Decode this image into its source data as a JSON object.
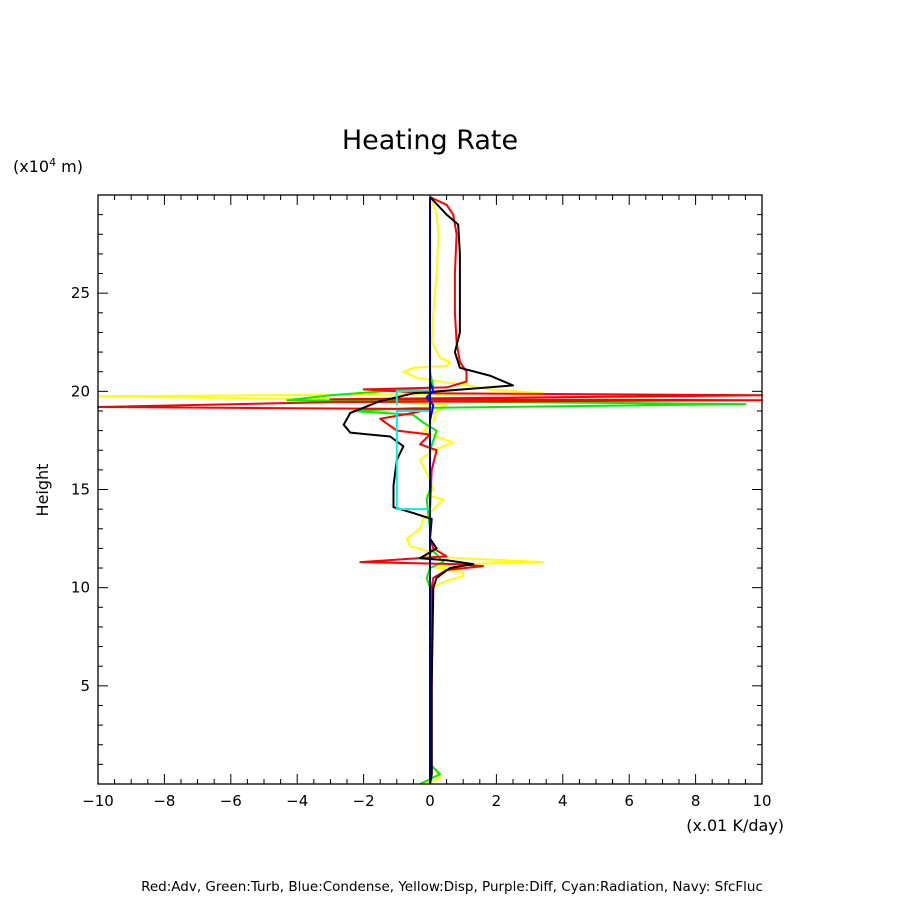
{
  "chart_data": {
    "type": "line",
    "title": "Heating Rate",
    "xlabel": "(x.01 K/day)",
    "ylabel": "Height",
    "yunit_prefix": "(x10",
    "yunit_exp": "4",
    "yunit_suffix": " m)",
    "xlim": [
      -10,
      10
    ],
    "ylim": [
      0,
      30
    ],
    "xticks": [
      -10,
      -8,
      -6,
      -4,
      -2,
      0,
      2,
      4,
      6,
      8,
      10
    ],
    "yticks": [
      5,
      10,
      15,
      20,
      25
    ],
    "footer": "Red:Adv, Green:Turb, Blue:Condense, Yellow:Disp, Purple:Diff, Cyan:Radiation, Navy: SfcFluc",
    "colors": {
      "red": "#ff0000",
      "green": "#00ee00",
      "blue": "#0000ff",
      "yellow": "#ffff00",
      "cyan": "#00eeee",
      "navy": "#000080",
      "black": "#000000"
    },
    "series": [
      {
        "color": "yellow",
        "points": [
          [
            0,
            29.9
          ],
          [
            0.1,
            29.5
          ],
          [
            0.2,
            29
          ],
          [
            0.25,
            28
          ],
          [
            0.2,
            26
          ],
          [
            0.1,
            24
          ],
          [
            0.05,
            22.5
          ],
          [
            0.3,
            21.7
          ],
          [
            0.6,
            21.5
          ],
          [
            0.5,
            21.3
          ],
          [
            -0.5,
            21.2
          ],
          [
            -0.8,
            21
          ],
          [
            -0.4,
            20.7
          ],
          [
            0.3,
            20.5
          ],
          [
            0.8,
            20.4
          ],
          [
            1.8,
            20.1
          ],
          [
            3.4,
            19.9
          ],
          [
            -5,
            19.8
          ],
          [
            -10,
            19.75
          ],
          [
            -3,
            19.6
          ],
          [
            -0.5,
            19.4
          ],
          [
            0.5,
            19.3
          ],
          [
            0.2,
            19
          ],
          [
            0.1,
            18.5
          ],
          [
            -0.2,
            18
          ],
          [
            0.2,
            17.7
          ],
          [
            0.7,
            17.4
          ],
          [
            0.1,
            17
          ],
          [
            -0.3,
            16.5
          ],
          [
            0,
            15.5
          ],
          [
            0.1,
            15
          ],
          [
            -0.1,
            14.7
          ],
          [
            0.4,
            14.5
          ],
          [
            0.1,
            14
          ],
          [
            -0.2,
            13.5
          ],
          [
            -0.3,
            13
          ],
          [
            -0.7,
            12.5
          ],
          [
            -0.6,
            12.1
          ],
          [
            0.1,
            11.8
          ],
          [
            -0.2,
            11.6
          ],
          [
            3.4,
            11.3
          ],
          [
            0.8,
            11.2
          ],
          [
            0.2,
            11
          ],
          [
            1,
            10.8
          ],
          [
            1,
            10.6
          ],
          [
            0.4,
            10.3
          ],
          [
            0.1,
            10
          ],
          [
            0.05,
            9
          ],
          [
            0.05,
            5
          ],
          [
            0.05,
            1
          ],
          [
            0.3,
            0.3
          ],
          [
            -0.2,
            0
          ]
        ]
      },
      {
        "color": "green",
        "points": [
          [
            0,
            29.9
          ],
          [
            0,
            21
          ],
          [
            0.1,
            20.2
          ],
          [
            -3,
            19.8
          ],
          [
            -4.3,
            19.55
          ],
          [
            9.5,
            19.35
          ],
          [
            -0.5,
            19.15
          ],
          [
            -2.3,
            19
          ],
          [
            -0.5,
            18.8
          ],
          [
            -0.2,
            18.4
          ],
          [
            0.2,
            18
          ],
          [
            0.1,
            17.5
          ],
          [
            0,
            17
          ],
          [
            0,
            15
          ],
          [
            -0.1,
            14.5
          ],
          [
            0,
            13
          ],
          [
            0,
            12
          ],
          [
            0.2,
            11.7
          ],
          [
            0.4,
            11.3
          ],
          [
            0,
            11
          ],
          [
            -0.1,
            10.5
          ],
          [
            0,
            10
          ],
          [
            0,
            1
          ],
          [
            0.3,
            0.5
          ],
          [
            -0.3,
            0
          ]
        ]
      },
      {
        "color": "red",
        "points": [
          [
            0,
            29.9
          ],
          [
            0.5,
            29.5
          ],
          [
            0.7,
            29
          ],
          [
            0.8,
            28
          ],
          [
            0.75,
            26
          ],
          [
            0.75,
            24
          ],
          [
            0.8,
            22.5
          ],
          [
            0.9,
            21.5
          ],
          [
            1.1,
            21
          ],
          [
            1.1,
            20.5
          ],
          [
            0.5,
            20.2
          ],
          [
            -2,
            20.1
          ],
          [
            0,
            19.9
          ],
          [
            10,
            19.8
          ],
          [
            -3,
            19.6
          ],
          [
            10,
            19.55
          ],
          [
            -3,
            19.45
          ],
          [
            -10,
            19.2
          ],
          [
            0,
            19.1
          ],
          [
            -0.5,
            18.9
          ],
          [
            -1.5,
            18.6
          ],
          [
            -1,
            18
          ],
          [
            0,
            17.8
          ],
          [
            -0.3,
            17.3
          ],
          [
            0.2,
            17
          ],
          [
            0.05,
            16
          ],
          [
            0,
            14
          ],
          [
            0,
            12.5
          ],
          [
            0.1,
            12
          ],
          [
            0.5,
            11.6
          ],
          [
            -2.1,
            11.3
          ],
          [
            0.8,
            11.2
          ],
          [
            1.6,
            11.1
          ],
          [
            0.5,
            10.9
          ],
          [
            0.1,
            10.5
          ],
          [
            0.05,
            10
          ],
          [
            0.05,
            5
          ],
          [
            0.05,
            0.5
          ],
          [
            0,
            0
          ]
        ]
      },
      {
        "color": "black",
        "points": [
          [
            0,
            29.9
          ],
          [
            0.5,
            29
          ],
          [
            0.85,
            28.5
          ],
          [
            0.9,
            27
          ],
          [
            0.9,
            23
          ],
          [
            0.75,
            22
          ],
          [
            0.9,
            21.2
          ],
          [
            1.8,
            20.8
          ],
          [
            2.5,
            20.3
          ],
          [
            1,
            20.1
          ],
          [
            -0.5,
            19.9
          ],
          [
            -1.5,
            19.5
          ],
          [
            -2.4,
            18.9
          ],
          [
            -2.6,
            18.3
          ],
          [
            -2.4,
            17.9
          ],
          [
            -1.2,
            17.7
          ],
          [
            -0.8,
            17.2
          ],
          [
            -1,
            16.5
          ],
          [
            -1.1,
            15.2
          ],
          [
            -1.1,
            14.1
          ],
          [
            -0.5,
            13.8
          ],
          [
            0.05,
            13.5
          ],
          [
            0,
            12.5
          ],
          [
            0.2,
            12
          ],
          [
            -0.3,
            11.5
          ],
          [
            0.5,
            11.4
          ],
          [
            1.3,
            11.2
          ],
          [
            0.6,
            11
          ],
          [
            0.2,
            10.5
          ],
          [
            0.1,
            10
          ],
          [
            0.05,
            5
          ],
          [
            0.05,
            0.5
          ],
          [
            0,
            0
          ]
        ]
      },
      {
        "color": "cyan",
        "points": [
          [
            -1.0,
            19.3
          ],
          [
            -1.0,
            20.0
          ],
          [
            0,
            20.05
          ],
          [
            0,
            19.0
          ],
          [
            -1.0,
            19.0
          ],
          [
            -1.0,
            14.0
          ],
          [
            0,
            14.0
          ],
          [
            0,
            12.0
          ],
          [
            0,
            0
          ]
        ]
      },
      {
        "color": "blue",
        "points": [
          [
            0,
            29.9
          ],
          [
            0,
            20.5
          ],
          [
            0.1,
            20
          ],
          [
            -0.1,
            19.7
          ],
          [
            0.1,
            19.3
          ],
          [
            0,
            18.5
          ],
          [
            0,
            17
          ],
          [
            0,
            0
          ]
        ]
      },
      {
        "color": "navy",
        "points": [
          [
            0,
            29.9
          ],
          [
            0,
            0
          ]
        ]
      }
    ]
  }
}
